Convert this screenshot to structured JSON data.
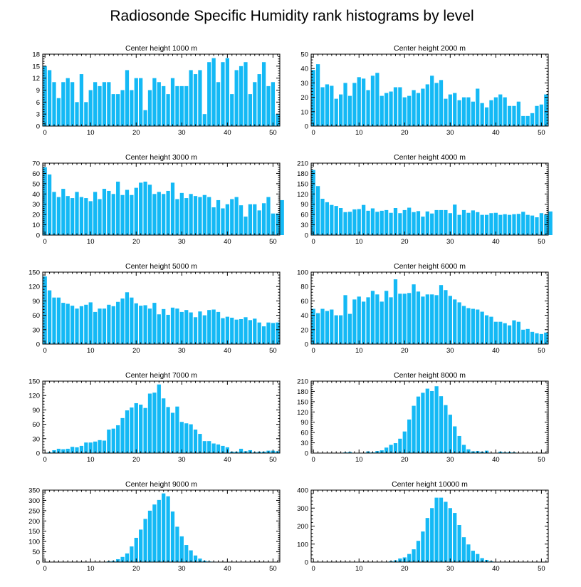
{
  "title": "Radiosonde Specific Humidity rank histograms by level",
  "colors": {
    "bar": "#14b9f5",
    "axis": "#000000",
    "background": "#ffffff"
  },
  "chart_data": [
    {
      "type": "bar",
      "title": "Center height 1000 m",
      "xlim": [
        -0.5,
        51.5
      ],
      "xticks": [
        0,
        10,
        20,
        30,
        40,
        50
      ],
      "ylim": [
        0,
        18
      ],
      "yticks": [
        0,
        3,
        6,
        9,
        12,
        15,
        18
      ],
      "values": [
        15,
        14,
        11,
        7,
        11,
        12,
        11,
        6,
        13,
        6,
        9,
        11,
        10,
        11,
        11,
        8,
        8,
        9,
        14,
        9,
        12,
        12,
        4,
        9,
        12,
        11,
        10,
        8,
        12,
        10,
        10,
        10,
        14,
        13,
        14,
        3,
        16,
        17,
        11,
        16,
        17,
        8,
        14,
        15,
        16,
        8,
        11,
        13,
        16,
        10,
        11,
        3
      ]
    },
    {
      "type": "bar",
      "title": "Center height 2000 m",
      "xlim": [
        -0.5,
        51.5
      ],
      "xticks": [
        0,
        10,
        20,
        30,
        40,
        50
      ],
      "ylim": [
        0,
        50
      ],
      "yticks": [
        0,
        10,
        20,
        30,
        40,
        50
      ],
      "values": [
        39,
        43,
        27,
        29,
        28,
        19,
        22,
        30,
        21,
        30,
        34,
        33,
        25,
        35,
        37,
        21,
        23,
        24,
        27,
        27,
        20,
        21,
        25,
        23,
        26,
        29,
        35,
        30,
        32,
        19,
        22,
        23,
        18,
        20,
        20,
        17,
        26,
        16,
        13,
        18,
        20,
        22,
        20,
        14,
        14,
        17,
        7,
        7,
        9,
        14,
        15,
        22
      ]
    },
    {
      "type": "bar",
      "title": "Center height 3000 m",
      "xlim": [
        -0.5,
        51.5
      ],
      "xticks": [
        0,
        10,
        20,
        30,
        40,
        50
      ],
      "ylim": [
        0,
        70
      ],
      "yticks": [
        0,
        10,
        20,
        30,
        40,
        50,
        60,
        70
      ],
      "values": [
        66,
        59,
        42,
        37,
        45,
        38,
        36,
        42,
        37,
        36,
        33,
        42,
        35,
        45,
        43,
        40,
        52,
        39,
        44,
        39,
        46,
        51,
        52,
        49,
        40,
        42,
        40,
        43,
        51,
        35,
        41,
        36,
        40,
        38,
        37,
        39,
        37,
        27,
        34,
        26,
        30,
        35,
        37,
        29,
        18,
        30,
        30,
        24,
        31,
        37,
        21,
        21,
        34
      ]
    },
    {
      "type": "bar",
      "title": "Center height 4000 m",
      "xlim": [
        -0.5,
        51.5
      ],
      "xticks": [
        0,
        10,
        20,
        30,
        40,
        50
      ],
      "ylim": [
        0,
        210
      ],
      "yticks": [
        0,
        30,
        60,
        90,
        120,
        150,
        180,
        210
      ],
      "values": [
        190,
        143,
        106,
        96,
        88,
        85,
        79,
        67,
        68,
        75,
        76,
        88,
        71,
        78,
        68,
        71,
        73,
        65,
        79,
        64,
        73,
        80,
        67,
        70,
        54,
        69,
        63,
        73,
        73,
        73,
        64,
        89,
        59,
        73,
        65,
        72,
        67,
        59,
        59,
        64,
        65,
        59,
        61,
        59,
        61,
        62,
        68,
        59,
        57,
        52,
        64,
        60,
        69
      ]
    },
    {
      "type": "bar",
      "title": "Center height 5000 m",
      "xlim": [
        -0.5,
        51.5
      ],
      "xticks": [
        0,
        10,
        20,
        30,
        40,
        50
      ],
      "ylim": [
        0,
        150
      ],
      "yticks": [
        0,
        30,
        60,
        90,
        120,
        150
      ],
      "values": [
        141,
        112,
        97,
        97,
        86,
        84,
        80,
        74,
        79,
        82,
        87,
        67,
        74,
        74,
        82,
        79,
        88,
        95,
        108,
        97,
        85,
        80,
        81,
        74,
        86,
        62,
        73,
        61,
        76,
        74,
        67,
        71,
        66,
        56,
        68,
        60,
        71,
        72,
        67,
        54,
        57,
        55,
        51,
        52,
        56,
        50,
        53,
        45,
        37,
        45,
        44,
        45
      ]
    },
    {
      "type": "bar",
      "title": "Center height 6000 m",
      "xlim": [
        -0.5,
        51.5
      ],
      "xticks": [
        0,
        10,
        20,
        30,
        40,
        50
      ],
      "ylim": [
        0,
        100
      ],
      "yticks": [
        0,
        20,
        40,
        60,
        80,
        100
      ],
      "values": [
        49,
        43,
        49,
        46,
        48,
        40,
        40,
        68,
        42,
        62,
        66,
        59,
        65,
        74,
        69,
        59,
        74,
        65,
        90,
        70,
        70,
        71,
        83,
        73,
        66,
        69,
        69,
        68,
        82,
        75,
        67,
        62,
        58,
        53,
        50,
        49,
        48,
        45,
        40,
        38,
        31,
        31,
        29,
        26,
        33,
        31,
        20,
        21,
        17,
        15,
        14,
        16
      ]
    },
    {
      "type": "bar",
      "title": "Center height 7000 m",
      "xlim": [
        -0.5,
        51.5
      ],
      "xticks": [
        0,
        10,
        20,
        30,
        40,
        50
      ],
      "ylim": [
        0,
        150
      ],
      "yticks": [
        0,
        30,
        60,
        90,
        120,
        150
      ],
      "values": [
        0,
        2,
        6,
        9,
        8,
        9,
        13,
        12,
        15,
        22,
        22,
        24,
        27,
        26,
        49,
        51,
        58,
        73,
        89,
        95,
        104,
        101,
        94,
        124,
        126,
        143,
        114,
        96,
        84,
        97,
        65,
        62,
        60,
        49,
        40,
        25,
        25,
        20,
        18,
        15,
        12,
        3,
        3,
        9,
        4,
        6,
        2,
        3,
        3,
        5,
        5,
        4
      ]
    },
    {
      "type": "bar",
      "title": "Center height 8000 m",
      "xlim": [
        -0.5,
        51.5
      ],
      "xticks": [
        0,
        10,
        20,
        30,
        40,
        50
      ],
      "ylim": [
        0,
        210
      ],
      "yticks": [
        0,
        30,
        60,
        90,
        120,
        150,
        180,
        210
      ],
      "values": [
        0,
        0,
        0,
        0,
        0,
        0,
        0,
        2,
        3,
        1,
        0,
        0,
        5,
        2,
        6,
        8,
        16,
        24,
        29,
        42,
        63,
        98,
        138,
        165,
        176,
        188,
        181,
        195,
        166,
        140,
        112,
        78,
        50,
        24,
        11,
        5,
        6,
        4,
        7,
        1,
        1,
        4,
        2,
        3,
        2,
        1,
        0,
        0,
        0,
        0,
        0,
        0
      ]
    },
    {
      "type": "bar",
      "title": "Center height 9000 m",
      "xlim": [
        -0.5,
        51.5
      ],
      "xticks": [
        0,
        10,
        20,
        30,
        40,
        50
      ],
      "ylim": [
        0,
        350
      ],
      "yticks": [
        0,
        50,
        100,
        150,
        200,
        250,
        300,
        350
      ],
      "values": [
        0,
        0,
        0,
        0,
        0,
        0,
        0,
        0,
        0,
        0,
        0,
        0,
        0,
        0,
        4,
        6,
        14,
        25,
        42,
        76,
        118,
        158,
        210,
        250,
        280,
        302,
        334,
        320,
        246,
        172,
        125,
        83,
        57,
        32,
        17,
        7,
        3,
        2,
        1,
        1,
        0,
        0,
        0,
        0,
        0,
        0,
        0,
        0,
        0,
        0,
        0,
        0
      ]
    },
    {
      "type": "bar",
      "title": "Center height 10000 m",
      "xlim": [
        -0.5,
        51.5
      ],
      "xticks": [
        0,
        10,
        20,
        30,
        40,
        50
      ],
      "ylim": [
        0,
        400
      ],
      "yticks": [
        0,
        100,
        200,
        300,
        400
      ],
      "values": [
        0,
        0,
        0,
        0,
        0,
        0,
        0,
        0,
        0,
        0,
        0,
        0,
        0,
        0,
        0,
        0,
        2,
        5,
        10,
        20,
        26,
        45,
        71,
        118,
        170,
        245,
        300,
        358,
        358,
        335,
        300,
        273,
        206,
        138,
        98,
        63,
        45,
        22,
        12,
        5,
        2,
        1,
        0,
        0,
        0,
        0,
        0,
        0,
        0,
        0,
        0,
        0
      ]
    }
  ]
}
